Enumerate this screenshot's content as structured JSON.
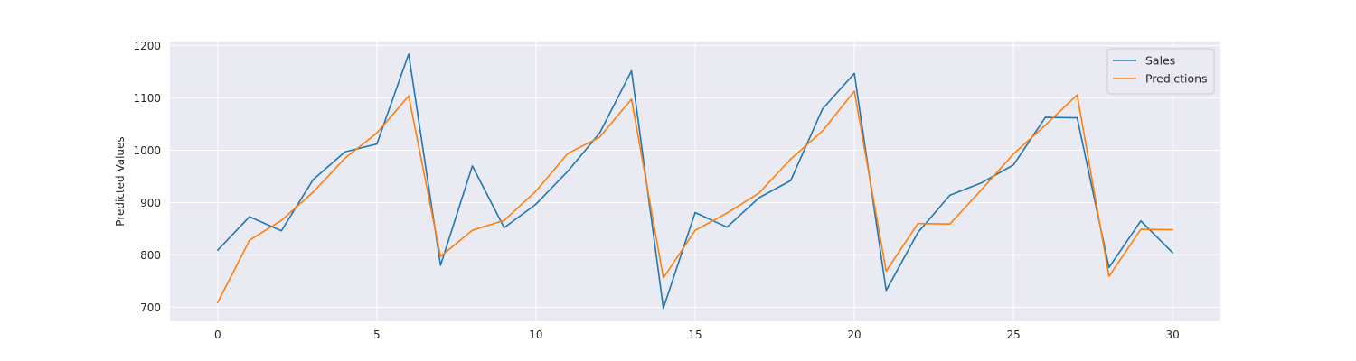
{
  "chart_data": {
    "type": "line",
    "title": "",
    "xlabel": "",
    "ylabel": "Predicted Values",
    "xlim": [
      -1.5,
      31.5
    ],
    "ylim": [
      673,
      1208
    ],
    "x_ticks": [
      0,
      5,
      10,
      15,
      20,
      25,
      30
    ],
    "y_ticks": [
      700,
      800,
      900,
      1000,
      1100,
      1200
    ],
    "grid": true,
    "legend_position": "top-right",
    "background": "#eaeaf2",
    "grid_color": "#ffffff",
    "x": [
      0,
      1,
      2,
      3,
      4,
      5,
      6,
      7,
      8,
      9,
      10,
      11,
      12,
      13,
      14,
      15,
      16,
      17,
      18,
      19,
      20,
      21,
      22,
      23,
      24,
      25,
      26,
      27,
      28,
      29,
      30
    ],
    "series": [
      {
        "name": "Sales",
        "color": "#1f77b4",
        "values": [
          809,
          873,
          846,
          944,
          997,
          1012,
          1184,
          780,
          970,
          852,
          897,
          960,
          1033,
          1152,
          698,
          881,
          853,
          909,
          942,
          1079,
          1147,
          732,
          843,
          914,
          938,
          972,
          1063,
          1062,
          776,
          865,
          804
        ]
      },
      {
        "name": "Predictions",
        "color": "#ff7f0e",
        "values": [
          709,
          828,
          866,
          920,
          985,
          1033,
          1104,
          797,
          847,
          866,
          922,
          994,
          1025,
          1098,
          756,
          847,
          880,
          918,
          983,
          1037,
          1113,
          769,
          860,
          859,
          925,
          993,
          1048,
          1106,
          759,
          849,
          848
        ]
      }
    ]
  }
}
